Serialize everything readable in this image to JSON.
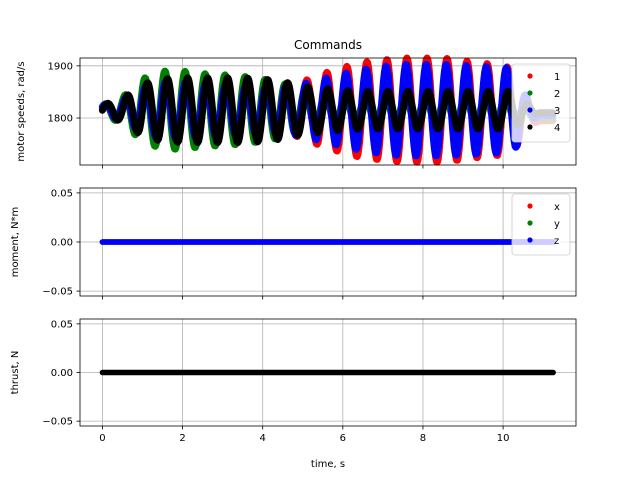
{
  "chart_data": [
    {
      "type": "scatter",
      "title": "Commands",
      "xlabel": "",
      "ylabel": "motor speeds, rad/s",
      "xlim": [
        -0.56,
        11.82
      ],
      "ylim": [
        1710,
        1915
      ],
      "xticks": [
        0,
        2,
        4,
        6,
        8,
        10
      ],
      "yticks": [
        1800,
        1900
      ],
      "ytick_labels": [
        "1800",
        "1900"
      ],
      "grid": true,
      "legend_position": "top-right",
      "series": [
        {
          "name": "1",
          "color": "#ff0000",
          "amp": [
            10,
            20,
            30,
            35,
            35,
            30,
            25,
            25,
            38,
            40,
            55,
            70,
            82,
            92,
            96,
            100,
            100,
            100,
            95,
            90,
            86,
            80,
            70,
            60,
            50,
            35
          ],
          "phase": 0.3
        },
        {
          "name": "2",
          "color": "#008000",
          "amp": [
            10,
            25,
            60,
            75,
            75,
            70,
            68,
            65,
            60,
            52,
            40,
            30,
            25,
            25,
            25,
            25,
            25,
            25,
            25,
            25,
            25,
            25,
            20,
            20,
            20,
            15
          ],
          "phase": 0.8
        },
        {
          "name": "3",
          "color": "#0000ff",
          "amp": [
            10,
            20,
            45,
            55,
            55,
            52,
            50,
            48,
            46,
            46,
            50,
            60,
            70,
            78,
            84,
            88,
            88,
            88,
            86,
            84,
            82,
            80,
            70,
            60,
            50,
            30
          ],
          "phase": 0.55
        },
        {
          "name": "4",
          "color": "#000000",
          "amp": [
            10,
            22,
            50,
            60,
            62,
            62,
            62,
            62,
            60,
            55,
            46,
            42,
            38,
            36,
            36,
            36,
            36,
            36,
            36,
            36,
            36,
            36,
            30,
            30,
            25,
            15
          ],
          "phase": 0.0
        }
      ]
    },
    {
      "type": "scatter",
      "title": "",
      "xlabel": "",
      "ylabel": "moment, N*m",
      "xlim": [
        -0.56,
        11.82
      ],
      "ylim": [
        -0.055,
        0.055
      ],
      "xticks": [
        0,
        2,
        4,
        6,
        8,
        10
      ],
      "yticks": [
        0.05,
        0.0,
        -0.05
      ],
      "ytick_labels": [
        "0.05",
        "0.00",
        "−0.05"
      ],
      "grid": true,
      "legend_position": "top-right",
      "series": [
        {
          "name": "x",
          "color": "#ff0000",
          "constant": 0.0
        },
        {
          "name": "y",
          "color": "#008000",
          "constant": 0.0
        },
        {
          "name": "z",
          "color": "#0000ff",
          "constant": 0.0
        }
      ]
    },
    {
      "type": "scatter",
      "title": "",
      "xlabel": "time, s",
      "ylabel": "thrust, N",
      "xlim": [
        -0.56,
        11.82
      ],
      "ylim": [
        -0.055,
        0.055
      ],
      "xticks": [
        0,
        2,
        4,
        6,
        8,
        10
      ],
      "xtick_labels": [
        "0",
        "2",
        "4",
        "6",
        "8",
        "10"
      ],
      "yticks": [
        0.05,
        0.0,
        -0.05
      ],
      "ytick_labels": [
        "0.05",
        "0.00",
        "−0.05"
      ],
      "grid": true,
      "legend_position": "none",
      "series": [
        {
          "name": "",
          "color": "#000000",
          "constant": 0.0
        }
      ]
    }
  ],
  "motor_model": {
    "base": 1815,
    "x_range": [
      0,
      11.25
    ],
    "oscillation_period_s": 0.5,
    "sample_step_s": 0.02,
    "envelope_times": [
      0,
      0.5,
      1,
      1.5,
      2,
      2.5,
      3,
      3.5,
      4,
      4.5,
      5,
      5.5,
      6,
      6.5,
      7,
      7.5,
      8,
      8.5,
      9,
      9.5,
      10,
      10.2,
      10.4,
      10.6,
      10.8,
      11.25
    ]
  },
  "constant_series_x_range": [
    0,
    11.25
  ]
}
